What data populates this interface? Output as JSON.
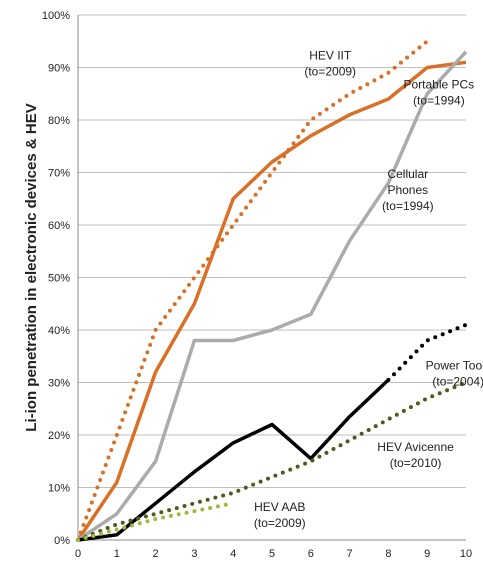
{
  "chart_data": {
    "type": "line",
    "title": "",
    "xlabel": "",
    "ylabel": "Li-ion penetration in electronic devices & HEV",
    "xlim": [
      0,
      10
    ],
    "ylim": [
      0,
      100
    ],
    "x_ticks": [
      "0",
      "1",
      "2",
      "3",
      "4",
      "5",
      "6",
      "7",
      "8",
      "9",
      "10"
    ],
    "y_ticks": [
      "0%",
      "10%",
      "20%",
      "30%",
      "40%",
      "50%",
      "60%",
      "70%",
      "80%",
      "90%",
      "100%"
    ],
    "grid": "horizontal",
    "legend": "none (series labeled directly on plot)",
    "series": [
      {
        "name_lines": [
          "Portable PCs",
          "(to=1994)"
        ],
        "color": "#D97026",
        "style": "solid",
        "points": [
          [
            0,
            0
          ],
          [
            1,
            11
          ],
          [
            2,
            32
          ],
          [
            3,
            45
          ],
          [
            4,
            65
          ],
          [
            5,
            72
          ],
          [
            6,
            77
          ],
          [
            7,
            81
          ],
          [
            8,
            84
          ],
          [
            9,
            90
          ],
          [
            10,
            91
          ]
        ]
      },
      {
        "name_lines": [
          "HEV IIT",
          "(to=2009)"
        ],
        "color": "#D97026",
        "style": "dotted",
        "points": [
          [
            0,
            0
          ],
          [
            1,
            20
          ],
          [
            2,
            40
          ],
          [
            3,
            50
          ],
          [
            4,
            60
          ],
          [
            5,
            70
          ],
          [
            6,
            80
          ],
          [
            7,
            85
          ],
          [
            8,
            89
          ],
          [
            9,
            95
          ]
        ]
      },
      {
        "name_lines": [
          "Cellular",
          "Phones",
          "(to=1994)"
        ],
        "color": "#ABABAB",
        "style": "solid",
        "points": [
          [
            0,
            0
          ],
          [
            1,
            5
          ],
          [
            2,
            15
          ],
          [
            3,
            38
          ],
          [
            4,
            38
          ],
          [
            5,
            40
          ],
          [
            6,
            43
          ],
          [
            7,
            57
          ],
          [
            8,
            68
          ],
          [
            9,
            85
          ],
          [
            10,
            93
          ]
        ]
      },
      {
        "name_lines": [
          "Power Tools",
          "(to=2004)"
        ],
        "color": "#000000",
        "style": "solid",
        "points": [
          [
            0,
            0
          ],
          [
            1,
            1
          ],
          [
            2,
            7
          ],
          [
            3,
            13
          ],
          [
            4,
            18.5
          ],
          [
            5,
            22
          ],
          [
            6,
            15.5
          ],
          [
            7,
            23.5
          ],
          [
            8,
            30.5
          ]
        ]
      },
      {
        "name_lines": [
          "Power Tools",
          "(to=2004)"
        ],
        "color": "#000000",
        "style": "dotted",
        "is_projection": true,
        "points": [
          [
            8,
            30.5
          ],
          [
            9,
            38
          ],
          [
            10,
            41
          ]
        ]
      },
      {
        "name_lines": [
          "HEV Avicenne",
          "(to=2010)"
        ],
        "color": "#4F5A1F",
        "style": "dotted",
        "points": [
          [
            0,
            0
          ],
          [
            1,
            3
          ],
          [
            2,
            5
          ],
          [
            3,
            7
          ],
          [
            4,
            9
          ],
          [
            5,
            12
          ],
          [
            6,
            15
          ],
          [
            7,
            19
          ],
          [
            8,
            23
          ],
          [
            9,
            27
          ],
          [
            10,
            30
          ]
        ]
      },
      {
        "name_lines": [
          "HEV AAB",
          "(to=2009)"
        ],
        "color": "#9BBB3B",
        "style": "dotted",
        "points": [
          [
            0,
            0
          ],
          [
            1,
            2
          ],
          [
            2,
            4
          ],
          [
            3,
            5.5
          ],
          [
            4,
            7
          ]
        ]
      }
    ],
    "annotations": [
      {
        "lines": [
          "HEV IIT",
          "(to=2009)"
        ],
        "x": 6.5,
        "y": 91.5
      },
      {
        "lines": [
          "Portable PCs",
          "(to=1994)"
        ],
        "x": 9.3,
        "y": 86
      },
      {
        "lines": [
          "Cellular",
          "Phones",
          "(to=1994)"
        ],
        "x": 8.5,
        "y": 69
      },
      {
        "lines": [
          "Power Tools",
          "(to=2004)"
        ],
        "x": 9.8,
        "y": 32.5
      },
      {
        "lines": [
          "HEV Avicenne",
          "(to=2010)"
        ],
        "x": 8.7,
        "y": 17
      },
      {
        "lines": [
          "HEV AAB",
          "(to=2009)"
        ],
        "x": 5.2,
        "y": 5.5
      }
    ]
  }
}
